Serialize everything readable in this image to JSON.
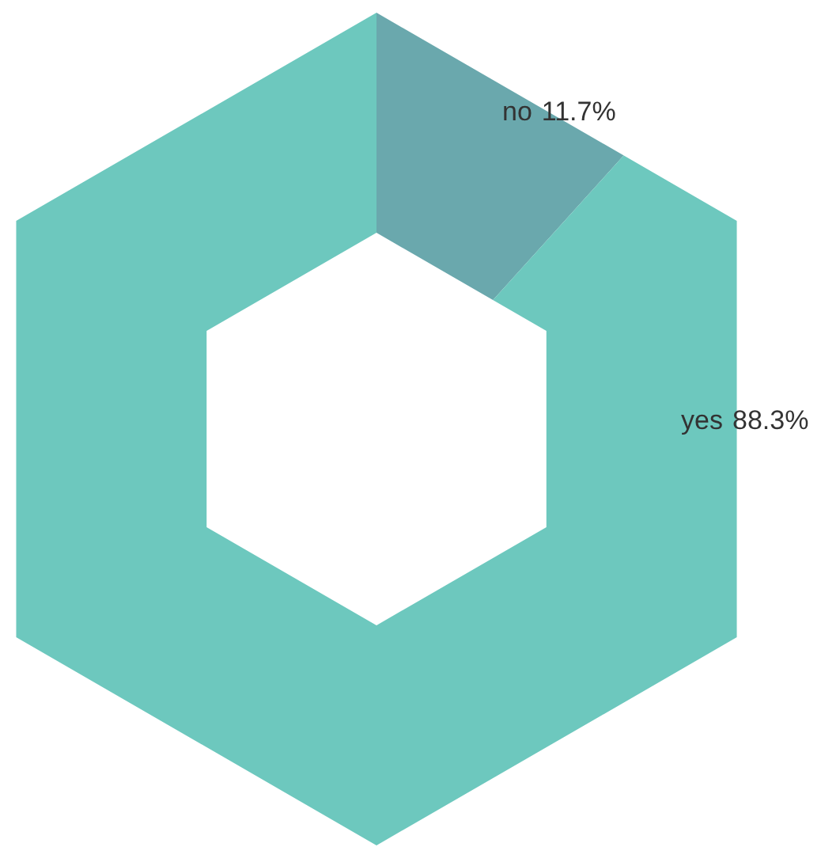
{
  "chart_data": {
    "type": "donut",
    "categories": [
      "no",
      "yes"
    ],
    "values": [
      11.7,
      88.3
    ],
    "colors": [
      "#6aa8ad",
      "#6dc8be"
    ],
    "value_labels": [
      "11.7%",
      "88.3%"
    ]
  }
}
